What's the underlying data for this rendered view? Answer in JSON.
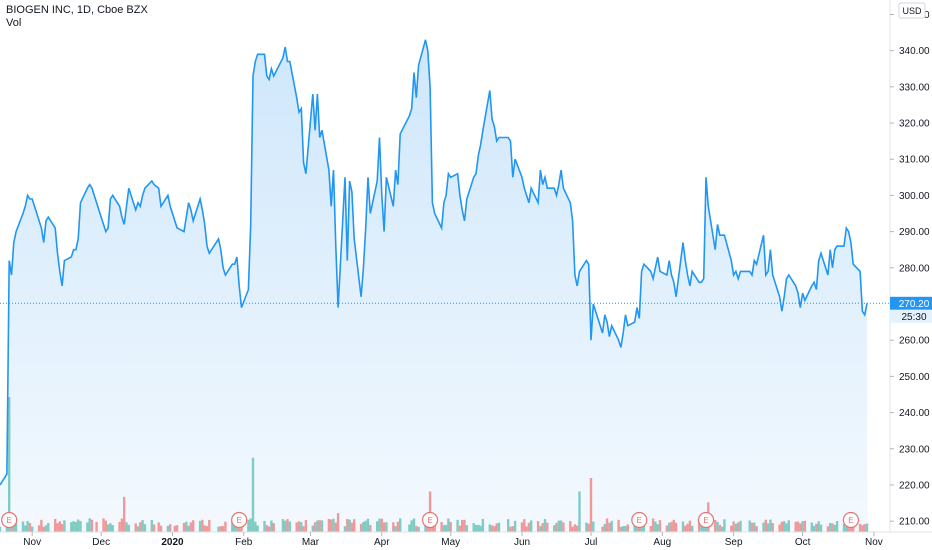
{
  "legend": {
    "title": "BIOGEN INC, 1D, Cboe BZX",
    "volume_label": "Vol"
  },
  "currency": "USD",
  "last_price_label": "270.20",
  "countdown_label": "25:30",
  "colors": {
    "line": "#2196f3",
    "area_top": "#cfe7fb",
    "area_bottom": "#f3f9fe",
    "vol_up": "#80cbc4",
    "vol_down": "#ef9a9a",
    "earnings": "#e57373",
    "price_badge": "#2196f3",
    "countdown_badge": "#e3f2fd"
  },
  "chart_data": {
    "type": "line",
    "y_axis": {
      "position": "right",
      "ticks": [
        210,
        220,
        230,
        240,
        250,
        260,
        270,
        280,
        290,
        300,
        310,
        320,
        330,
        340,
        350
      ],
      "tick_labels": [
        "210.00",
        "220.00",
        "230.00",
        "240.00",
        "250.00",
        "260.00",
        "270.00",
        "280.00",
        "290.00",
        "300.00",
        "310.00",
        "320.00",
        "330.00",
        "340.00",
        "350.00"
      ],
      "range": [
        207,
        354
      ]
    },
    "x_axis": {
      "labels": [
        {
          "text": "Nov",
          "date": "2019-11-01",
          "bold": false
        },
        {
          "text": "Dec",
          "date": "2019-12-01",
          "bold": false
        },
        {
          "text": "2020",
          "date": "2020-01-01",
          "bold": true
        },
        {
          "text": "Feb",
          "date": "2020-02-01",
          "bold": false
        },
        {
          "text": "Mar",
          "date": "2020-03-01",
          "bold": false
        },
        {
          "text": "Apr",
          "date": "2020-04-01",
          "bold": false
        },
        {
          "text": "May",
          "date": "2020-05-01",
          "bold": false
        },
        {
          "text": "Jun",
          "date": "2020-06-01",
          "bold": false
        },
        {
          "text": "Jul",
          "date": "2020-07-01",
          "bold": false
        },
        {
          "text": "Aug",
          "date": "2020-08-01",
          "bold": false
        },
        {
          "text": "Sep",
          "date": "2020-09-01",
          "bold": false
        },
        {
          "text": "Oct",
          "date": "2020-10-01",
          "bold": false
        },
        {
          "text": "Nov",
          "date": "2020-11-01",
          "bold": false
        }
      ],
      "range": [
        "2019-10-18",
        "2020-11-08"
      ]
    },
    "earnings_markers": [
      {
        "text": "E",
        "date": "2019-10-22"
      },
      {
        "text": "E",
        "date": "2020-01-30"
      },
      {
        "text": "E",
        "date": "2020-04-22"
      },
      {
        "text": "E",
        "date": "2020-07-22"
      },
      {
        "text": "E",
        "date": "2020-08-20"
      },
      {
        "text": "E",
        "date": "2020-10-22"
      }
    ],
    "price_series": {
      "name": "BIOGEN INC",
      "points": [
        [
          "2019-10-18",
          220
        ],
        [
          "2019-10-21",
          223
        ],
        [
          "2019-10-22",
          282
        ],
        [
          "2019-10-23",
          278
        ],
        [
          "2019-10-24",
          287
        ],
        [
          "2019-10-25",
          290
        ],
        [
          "2019-10-28",
          295
        ],
        [
          "2019-10-29",
          297
        ],
        [
          "2019-10-30",
          300
        ],
        [
          "2019-10-31",
          299
        ],
        [
          "2019-11-01",
          299
        ],
        [
          "2019-11-04",
          293
        ],
        [
          "2019-11-05",
          291
        ],
        [
          "2019-11-06",
          287
        ],
        [
          "2019-11-07",
          293
        ],
        [
          "2019-11-08",
          294
        ],
        [
          "2019-11-11",
          291
        ],
        [
          "2019-11-12",
          284
        ],
        [
          "2019-11-13",
          279
        ],
        [
          "2019-11-14",
          275
        ],
        [
          "2019-11-15",
          282
        ],
        [
          "2019-11-18",
          283
        ],
        [
          "2019-11-19",
          285
        ],
        [
          "2019-11-20",
          285
        ],
        [
          "2019-11-21",
          288
        ],
        [
          "2019-11-22",
          298
        ],
        [
          "2019-11-25",
          302
        ],
        [
          "2019-11-26",
          303
        ],
        [
          "2019-11-27",
          302
        ],
        [
          "2019-11-29",
          298
        ],
        [
          "2019-12-02",
          292
        ],
        [
          "2019-12-03",
          290
        ],
        [
          "2019-12-04",
          291
        ],
        [
          "2019-12-05",
          299
        ],
        [
          "2019-12-06",
          300
        ],
        [
          "2019-12-09",
          297
        ],
        [
          "2019-12-10",
          294
        ],
        [
          "2019-12-11",
          292
        ],
        [
          "2019-12-12",
          297
        ],
        [
          "2019-12-13",
          302
        ],
        [
          "2019-12-16",
          296
        ],
        [
          "2019-12-17",
          298
        ],
        [
          "2019-12-18",
          297
        ],
        [
          "2019-12-19",
          300
        ],
        [
          "2019-12-20",
          302
        ],
        [
          "2019-12-23",
          304
        ],
        [
          "2019-12-24",
          303
        ],
        [
          "2019-12-26",
          302
        ],
        [
          "2019-12-27",
          297
        ],
        [
          "2019-12-30",
          300
        ],
        [
          "2019-12-31",
          297
        ],
        [
          "2020-01-02",
          293
        ],
        [
          "2020-01-03",
          291
        ],
        [
          "2020-01-06",
          290
        ],
        [
          "2020-01-07",
          294
        ],
        [
          "2020-01-08",
          298
        ],
        [
          "2020-01-09",
          296
        ],
        [
          "2020-01-10",
          293
        ],
        [
          "2020-01-13",
          299
        ],
        [
          "2020-01-14",
          296
        ],
        [
          "2020-01-15",
          292
        ],
        [
          "2020-01-16",
          286
        ],
        [
          "2020-01-17",
          284
        ],
        [
          "2020-01-21",
          288
        ],
        [
          "2020-01-22",
          285
        ],
        [
          "2020-01-23",
          280
        ],
        [
          "2020-01-24",
          278
        ],
        [
          "2020-01-27",
          281
        ],
        [
          "2020-01-28",
          281
        ],
        [
          "2020-01-29",
          283
        ],
        [
          "2020-01-30",
          275
        ],
        [
          "2020-01-31",
          269
        ],
        [
          "2020-02-03",
          274
        ],
        [
          "2020-02-04",
          292
        ],
        [
          "2020-02-05",
          333
        ],
        [
          "2020-02-06",
          337
        ],
        [
          "2020-02-07",
          339
        ],
        [
          "2020-02-10",
          339
        ],
        [
          "2020-02-11",
          333
        ],
        [
          "2020-02-12",
          332
        ],
        [
          "2020-02-13",
          335
        ],
        [
          "2020-02-14",
          333
        ],
        [
          "2020-02-18",
          338
        ],
        [
          "2020-02-19",
          341
        ],
        [
          "2020-02-20",
          337
        ],
        [
          "2020-02-21",
          337
        ],
        [
          "2020-02-24",
          327
        ],
        [
          "2020-02-25",
          323
        ],
        [
          "2020-02-26",
          324
        ],
        [
          "2020-02-27",
          309
        ],
        [
          "2020-02-28",
          306
        ],
        [
          "2020-03-02",
          328
        ],
        [
          "2020-03-03",
          318
        ],
        [
          "2020-03-04",
          328
        ],
        [
          "2020-03-05",
          316
        ],
        [
          "2020-03-06",
          318
        ],
        [
          "2020-03-09",
          307
        ],
        [
          "2020-03-10",
          297
        ],
        [
          "2020-03-11",
          307
        ],
        [
          "2020-03-12",
          286
        ],
        [
          "2020-03-13",
          269
        ],
        [
          "2020-03-16",
          305
        ],
        [
          "2020-03-17",
          282
        ],
        [
          "2020-03-18",
          304
        ],
        [
          "2020-03-19",
          301
        ],
        [
          "2020-03-20",
          288
        ],
        [
          "2020-03-23",
          272
        ],
        [
          "2020-03-24",
          280
        ],
        [
          "2020-03-25",
          291
        ],
        [
          "2020-03-26",
          305
        ],
        [
          "2020-03-27",
          295
        ],
        [
          "2020-03-30",
          304
        ],
        [
          "2020-03-31",
          316
        ],
        [
          "2020-04-01",
          300
        ],
        [
          "2020-04-02",
          290
        ],
        [
          "2020-04-03",
          305
        ],
        [
          "2020-04-06",
          297
        ],
        [
          "2020-04-07",
          307
        ],
        [
          "2020-04-08",
          303
        ],
        [
          "2020-04-09",
          317
        ],
        [
          "2020-04-13",
          322
        ],
        [
          "2020-04-14",
          324
        ],
        [
          "2020-04-15",
          334
        ],
        [
          "2020-04-16",
          327
        ],
        [
          "2020-04-17",
          336
        ],
        [
          "2020-04-20",
          343
        ],
        [
          "2020-04-21",
          340
        ],
        [
          "2020-04-22",
          330
        ],
        [
          "2020-04-23",
          298
        ],
        [
          "2020-04-24",
          295
        ],
        [
          "2020-04-27",
          291
        ],
        [
          "2020-04-28",
          298
        ],
        [
          "2020-04-29",
          300
        ],
        [
          "2020-04-30",
          306
        ],
        [
          "2020-05-01",
          305
        ],
        [
          "2020-05-04",
          306
        ],
        [
          "2020-05-05",
          300
        ],
        [
          "2020-05-06",
          296
        ],
        [
          "2020-05-07",
          293
        ],
        [
          "2020-05-08",
          299
        ],
        [
          "2020-05-11",
          305
        ],
        [
          "2020-05-12",
          306
        ],
        [
          "2020-05-13",
          311
        ],
        [
          "2020-05-14",
          314
        ],
        [
          "2020-05-15",
          318
        ],
        [
          "2020-05-18",
          329
        ],
        [
          "2020-05-19",
          321
        ],
        [
          "2020-05-20",
          319
        ],
        [
          "2020-05-21",
          315
        ],
        [
          "2020-05-22",
          316
        ],
        [
          "2020-05-26",
          316
        ],
        [
          "2020-05-27",
          315
        ],
        [
          "2020-05-28",
          305
        ],
        [
          "2020-05-29",
          310
        ],
        [
          "2020-06-01",
          305
        ],
        [
          "2020-06-02",
          302
        ],
        [
          "2020-06-03",
          300
        ],
        [
          "2020-06-04",
          298
        ],
        [
          "2020-06-05",
          302
        ],
        [
          "2020-06-08",
          298
        ],
        [
          "2020-06-09",
          307
        ],
        [
          "2020-06-10",
          303
        ],
        [
          "2020-06-11",
          305
        ],
        [
          "2020-06-12",
          302
        ],
        [
          "2020-06-15",
          302
        ],
        [
          "2020-06-16",
          300
        ],
        [
          "2020-06-17",
          303
        ],
        [
          "2020-06-18",
          307
        ],
        [
          "2020-06-19",
          302
        ],
        [
          "2020-06-22",
          298
        ],
        [
          "2020-06-23",
          293
        ],
        [
          "2020-06-24",
          278
        ],
        [
          "2020-06-25",
          275
        ],
        [
          "2020-06-26",
          279
        ],
        [
          "2020-06-29",
          282
        ],
        [
          "2020-06-30",
          281
        ],
        [
          "2020-07-01",
          260
        ],
        [
          "2020-07-02",
          270
        ],
        [
          "2020-07-06",
          262
        ],
        [
          "2020-07-07",
          267
        ],
        [
          "2020-07-08",
          265
        ],
        [
          "2020-07-09",
          261
        ],
        [
          "2020-07-10",
          264
        ],
        [
          "2020-07-13",
          260
        ],
        [
          "2020-07-14",
          258
        ],
        [
          "2020-07-15",
          262
        ],
        [
          "2020-07-16",
          267
        ],
        [
          "2020-07-17",
          264
        ],
        [
          "2020-07-20",
          265
        ],
        [
          "2020-07-21",
          269
        ],
        [
          "2020-07-22",
          266
        ],
        [
          "2020-07-23",
          279
        ],
        [
          "2020-07-24",
          281
        ],
        [
          "2020-07-27",
          279
        ],
        [
          "2020-07-28",
          277
        ],
        [
          "2020-07-29",
          280
        ],
        [
          "2020-07-30",
          283
        ],
        [
          "2020-07-31",
          279
        ],
        [
          "2020-08-03",
          278
        ],
        [
          "2020-08-04",
          282
        ],
        [
          "2020-08-05",
          278
        ],
        [
          "2020-08-06",
          276
        ],
        [
          "2020-08-07",
          272
        ],
        [
          "2020-08-10",
          287
        ],
        [
          "2020-08-11",
          282
        ],
        [
          "2020-08-12",
          278
        ],
        [
          "2020-08-13",
          275
        ],
        [
          "2020-08-14",
          279
        ],
        [
          "2020-08-17",
          276
        ],
        [
          "2020-08-18",
          276
        ],
        [
          "2020-08-19",
          277
        ],
        [
          "2020-08-20",
          305
        ],
        [
          "2020-08-21",
          297
        ],
        [
          "2020-08-24",
          285
        ],
        [
          "2020-08-25",
          292
        ],
        [
          "2020-08-26",
          289
        ],
        [
          "2020-08-27",
          289
        ],
        [
          "2020-08-28",
          289
        ],
        [
          "2020-08-31",
          282
        ],
        [
          "2020-09-01",
          278
        ],
        [
          "2020-09-02",
          279
        ],
        [
          "2020-09-03",
          277
        ],
        [
          "2020-09-04",
          279
        ],
        [
          "2020-09-08",
          279
        ],
        [
          "2020-09-09",
          278
        ],
        [
          "2020-09-10",
          282
        ],
        [
          "2020-09-11",
          281
        ],
        [
          "2020-09-14",
          289
        ],
        [
          "2020-09-15",
          278
        ],
        [
          "2020-09-16",
          279
        ],
        [
          "2020-09-17",
          285
        ],
        [
          "2020-09-18",
          278
        ],
        [
          "2020-09-21",
          272
        ],
        [
          "2020-09-22",
          268
        ],
        [
          "2020-09-23",
          272
        ],
        [
          "2020-09-24",
          277
        ],
        [
          "2020-09-25",
          278
        ],
        [
          "2020-09-28",
          275
        ],
        [
          "2020-09-29",
          273
        ],
        [
          "2020-09-30",
          269
        ],
        [
          "2020-10-01",
          273
        ],
        [
          "2020-10-02",
          271
        ],
        [
          "2020-10-05",
          275
        ],
        [
          "2020-10-06",
          276
        ],
        [
          "2020-10-07",
          274
        ],
        [
          "2020-10-08",
          282
        ],
        [
          "2020-10-09",
          284
        ],
        [
          "2020-10-12",
          278
        ],
        [
          "2020-10-13",
          285
        ],
        [
          "2020-10-14",
          280
        ],
        [
          "2020-10-15",
          285
        ],
        [
          "2020-10-16",
          286
        ],
        [
          "2020-10-19",
          286
        ],
        [
          "2020-10-20",
          291
        ],
        [
          "2020-10-21",
          290
        ],
        [
          "2020-10-22",
          287
        ],
        [
          "2020-10-23",
          281
        ],
        [
          "2020-10-26",
          279
        ],
        [
          "2020-10-27",
          268
        ],
        [
          "2020-10-28",
          267
        ],
        [
          "2020-10-29",
          270.2
        ]
      ]
    },
    "volume_series": {
      "name": "Vol",
      "up_days_color_name": "vol_up",
      "down_days_color_name": "vol_down",
      "spikes": [
        [
          "2019-10-22",
          1.0
        ],
        [
          "2020-02-05",
          0.55
        ],
        [
          "2020-04-22",
          0.3
        ],
        [
          "2020-06-26",
          0.3
        ],
        [
          "2020-07-01",
          0.4
        ],
        [
          "2020-08-21",
          0.22
        ],
        [
          "2019-12-11",
          0.26
        ],
        [
          "2020-03-13",
          0.14
        ]
      ],
      "baseline_relative": 0.07
    }
  }
}
